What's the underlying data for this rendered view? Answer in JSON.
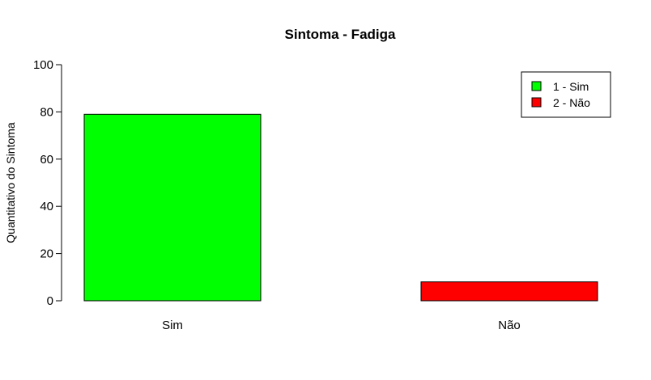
{
  "chart_data": {
    "type": "bar",
    "title": "Sintoma - Fadiga",
    "xlabel": "",
    "ylabel": "Quantitativo do Sintoma",
    "categories": [
      "Sim",
      "Não"
    ],
    "values": [
      79,
      8
    ],
    "colors": [
      "#00ff00",
      "#ff0000"
    ],
    "ylim": [
      0,
      100
    ],
    "yticks": [
      "0",
      "20",
      "40",
      "60",
      "80",
      "100"
    ],
    "grid": false,
    "legend": {
      "placement": "top-right",
      "entries": [
        {
          "label": "1 - Sim",
          "color": "#00ff00"
        },
        {
          "label": "2 - Não",
          "color": "#ff0000"
        }
      ]
    }
  }
}
